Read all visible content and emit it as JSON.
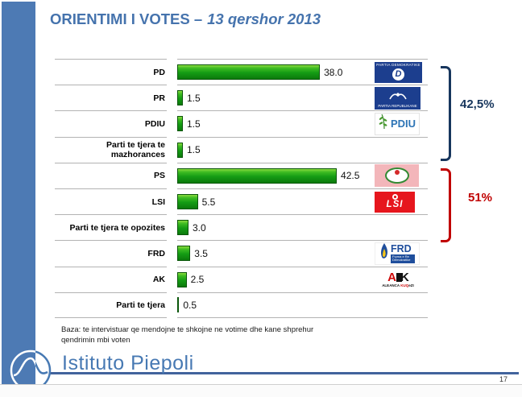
{
  "slide": {
    "title_main": "ORIENTIMI I VOTES –",
    "title_date": "13 qershor 2013",
    "page_number": "17"
  },
  "chart_data": {
    "type": "bar",
    "orientation": "horizontal",
    "title": "ORIENTIMI I VOTES – 13 qershor 2013",
    "categories": [
      "PD",
      "PR",
      "PDIU",
      "Parti te tjera te mazhorances",
      "PS",
      "LSI",
      "Parti te tjera te opozites",
      "FRD",
      "AK",
      "Parti te tjera"
    ],
    "values": [
      38.0,
      1.5,
      1.5,
      1.5,
      42.5,
      5.5,
      3.0,
      3.5,
      2.5,
      0.5
    ],
    "value_labels": [
      "38.0",
      "1.5",
      "1.5",
      "1.5",
      "42.5",
      "5.5",
      "3.0",
      "3.5",
      "2.5",
      "0.5"
    ],
    "xlim": [
      0,
      45
    ],
    "bar_color": "#149c14",
    "grid": "horizontal-row-separators",
    "legend": "none",
    "annotations": [
      {
        "label": "42,5%",
        "rows": [
          "PD",
          "PR",
          "PDIU",
          "Parti te tjera te mazhorances"
        ],
        "color": "#17365d"
      },
      {
        "label": "51%",
        "rows": [
          "PS",
          "LSI",
          "Parti te tjera te opozites"
        ],
        "color": "#c00000"
      }
    ]
  },
  "rows": [
    {
      "label": "PD",
      "value": 38.0,
      "value_label": "38.0",
      "logo": "pd"
    },
    {
      "label": "PR",
      "value": 1.5,
      "value_label": "1.5",
      "logo": "pr"
    },
    {
      "label": "PDIU",
      "value": 1.5,
      "value_label": "1.5",
      "logo": "pdiu"
    },
    {
      "label": "Parti te tjera te mazhorances",
      "value": 1.5,
      "value_label": "1.5",
      "logo": null
    },
    {
      "label": "PS",
      "value": 42.5,
      "value_label": "42.5",
      "logo": "ps"
    },
    {
      "label": "LSI",
      "value": 5.5,
      "value_label": "5.5",
      "logo": "lsi"
    },
    {
      "label": "Parti te tjera te opozites",
      "value": 3.0,
      "value_label": "3.0",
      "logo": null
    },
    {
      "label": "FRD",
      "value": 3.5,
      "value_label": "3.5",
      "logo": "frd"
    },
    {
      "label": "AK",
      "value": 2.5,
      "value_label": "2.5",
      "logo": "ak"
    },
    {
      "label": "Parti te tjera",
      "value": 0.5,
      "value_label": "0.5",
      "logo": null
    }
  ],
  "logos": {
    "pd": {
      "top": "PARTIA DEMOKRATIKE",
      "letter": "D"
    },
    "pr": {
      "bottom": "PARTIA REPUBLIKANE"
    },
    "pdiu": {
      "text": "PDIU"
    },
    "lsi": {
      "text": "LSI"
    },
    "frd": {
      "text": "FRD",
      "sub": "Fryma e Re Demokratike"
    },
    "ak": {
      "a": "A",
      "k": "K",
      "bottom_left": "ALEANCA ",
      "bottom_red": "KUQ",
      "bottom_right": "eZI"
    }
  },
  "brackets": {
    "majority_label": "42,5%",
    "opposition_label": "51%"
  },
  "footer": {
    "line1": "Baza: te intervistuar qe mendojne te shkojne ne votime dhe kane shprehur",
    "line2": "qendrimin mbi voten"
  },
  "branding": {
    "name": "Istituto Piepoli"
  }
}
